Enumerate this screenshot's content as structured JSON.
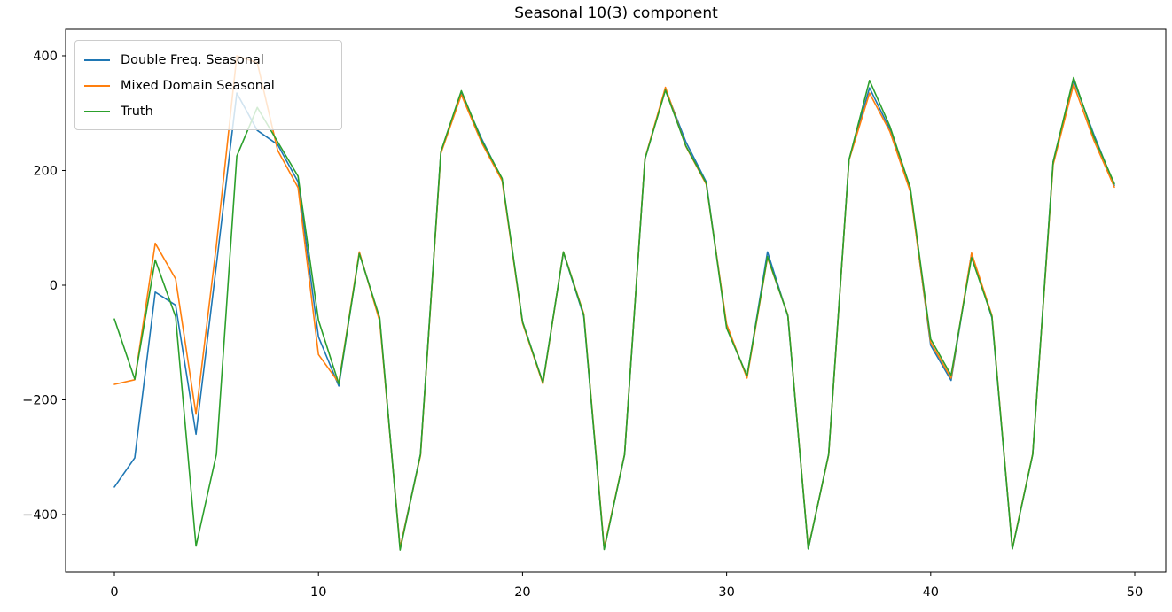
{
  "title": "Seasonal 10(3) component",
  "axes": {
    "x_tick_labels": [
      "0",
      "10",
      "20",
      "30",
      "40",
      "50"
    ],
    "x_tick_values": [
      0,
      10,
      20,
      30,
      40,
      50
    ],
    "y_tick_labels": [
      "−400",
      "−200",
      "0",
      "200",
      "400"
    ],
    "y_tick_values": [
      -400,
      -200,
      0,
      200,
      400
    ]
  },
  "chart_data": {
    "type": "line",
    "title": "Seasonal 10(3) component",
    "xlabel": "",
    "ylabel": "",
    "xlim": [
      -2.39,
      51.52
    ],
    "ylim": [
      -500.4,
      446.3
    ],
    "grid": false,
    "legend_position": "upper left",
    "x": [
      0,
      1,
      2,
      3,
      4,
      5,
      6,
      7,
      8,
      9,
      10,
      11,
      12,
      13,
      14,
      15,
      16,
      17,
      18,
      19,
      20,
      21,
      22,
      23,
      24,
      25,
      26,
      27,
      28,
      29,
      30,
      31,
      32,
      33,
      34,
      35,
      36,
      37,
      38,
      39,
      40,
      41,
      42,
      43,
      44,
      45,
      46,
      47,
      48,
      49
    ],
    "series": [
      {
        "name": "Double Freq. Seasonal",
        "color": "#1f77b4",
        "values": [
          -352,
          -301,
          -12,
          -35,
          -260,
          35,
          335,
          270,
          245,
          180,
          -90,
          -176,
          57,
          -60,
          -458,
          -295,
          232,
          335,
          255,
          184,
          -64,
          -170,
          57,
          -54,
          -460,
          -296,
          220,
          342,
          250,
          180,
          -72,
          -160,
          58,
          -54,
          -460,
          -295,
          219,
          344,
          272,
          168,
          -105,
          -166,
          55,
          -57,
          -460,
          -295,
          215,
          358,
          262,
          174
        ]
      },
      {
        "name": "Mixed Domain Seasonal",
        "color": "#ff7f0e",
        "values": [
          -173,
          -165,
          73,
          11,
          -225,
          70,
          400,
          388,
          235,
          170,
          -121,
          -170,
          58,
          -63,
          -458,
          -297,
          230,
          332,
          248,
          182,
          -66,
          -172,
          58,
          -50,
          -458,
          -295,
          221,
          345,
          242,
          176,
          -68,
          -162,
          48,
          -52,
          -459,
          -296,
          218,
          335,
          268,
          163,
          -100,
          -162,
          56,
          -53,
          -459,
          -294,
          210,
          350,
          252,
          171
        ]
      },
      {
        "name": "Truth",
        "color": "#2ca02c",
        "values": [
          -59,
          -164,
          44,
          -55,
          -455,
          -295,
          225,
          310,
          250,
          190,
          -61,
          -172,
          55,
          -57,
          -462,
          -295,
          233,
          339,
          252,
          186,
          -64,
          -170,
          58,
          -52,
          -461,
          -295,
          220,
          340,
          243,
          178,
          -75,
          -158,
          50,
          -53,
          -460,
          -295,
          219,
          357,
          277,
          170,
          -94,
          -157,
          48,
          -55,
          -460,
          -295,
          215,
          362,
          258,
          177
        ]
      }
    ]
  }
}
